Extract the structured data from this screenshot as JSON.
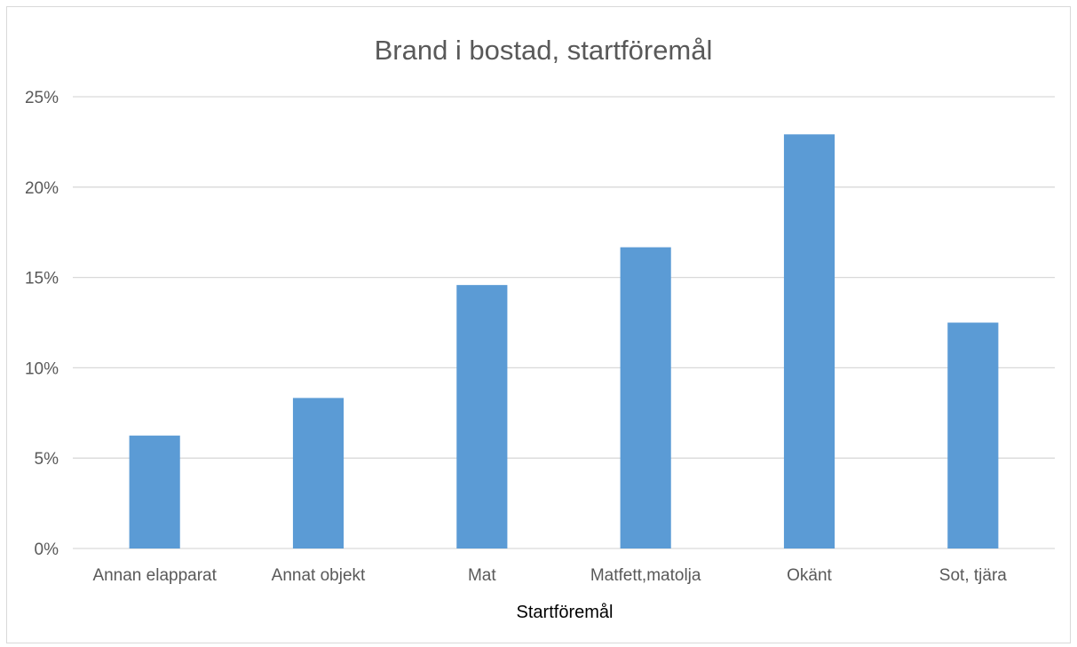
{
  "chart_data": {
    "type": "bar",
    "title": "Brand i bostad, startföremål",
    "xlabel": "Startföremål",
    "ylabel": "",
    "categories": [
      "Annan elapparat",
      "Annat objekt",
      "Mat",
      "Matfett,matolja",
      "Okänt",
      "Sot, tjära"
    ],
    "values": [
      0.0625,
      0.0833,
      0.1458,
      0.1667,
      0.2292,
      0.125
    ],
    "ylim": [
      0,
      0.25
    ],
    "yticks": [
      {
        "value": 0,
        "label": "0%"
      },
      {
        "value": 0.05,
        "label": "5%"
      },
      {
        "value": 0.1,
        "label": "10%"
      },
      {
        "value": 0.15,
        "label": "15%"
      },
      {
        "value": 0.2,
        "label": "20%"
      },
      {
        "value": 0.25,
        "label": "25%"
      }
    ],
    "grid": true,
    "legend": "none",
    "bar_color": "#5b9bd5",
    "grid_color": "#d9d9d9"
  }
}
